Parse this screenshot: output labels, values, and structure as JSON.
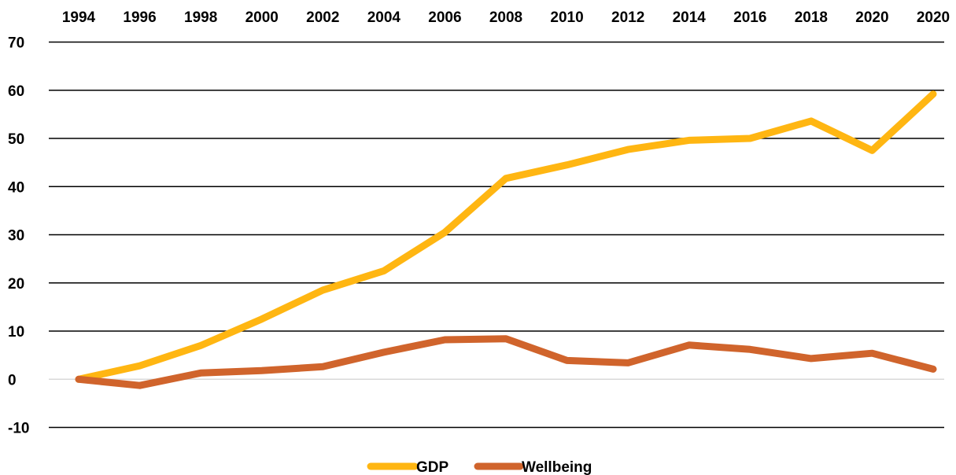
{
  "chart_data": {
    "type": "line",
    "title": "",
    "xlabel": "",
    "ylabel": "",
    "categories": [
      "1994",
      "1996",
      "1998",
      "2000",
      "2002",
      "2004",
      "2006",
      "2008",
      "2010",
      "2012",
      "2014",
      "2016",
      "2018",
      "2020",
      "2020"
    ],
    "ylim": [
      -10,
      70
    ],
    "yticks": [
      -10,
      0,
      10,
      20,
      30,
      40,
      50,
      60,
      70
    ],
    "x_axis_position": "top",
    "grid": true,
    "legend_position": "bottom",
    "series": [
      {
        "name": "GDP",
        "color": "#FFB612",
        "values": [
          0,
          2.8,
          7,
          12.5,
          18.5,
          22.5,
          30.5,
          41.7,
          44.5,
          47.7,
          49.6,
          50,
          53.6,
          47.5,
          59.2
        ]
      },
      {
        "name": "Wellbeing",
        "color": "#D0642C",
        "values": [
          0,
          -1.3,
          1.3,
          1.8,
          2.6,
          5.6,
          8.2,
          8.4,
          3.9,
          3.4,
          7.1,
          6.2,
          4.3,
          5.4,
          2.1
        ]
      }
    ]
  }
}
